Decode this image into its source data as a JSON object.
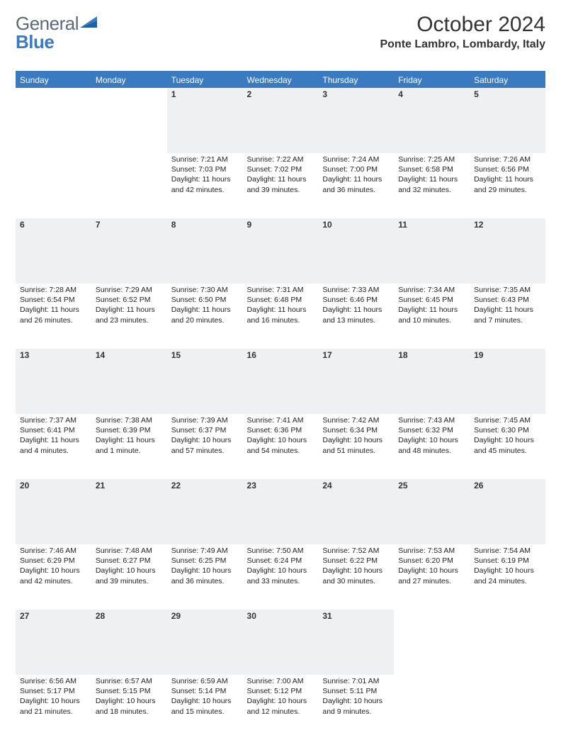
{
  "brand": {
    "part1": "General",
    "part2": "Blue"
  },
  "title": "October 2024",
  "location": "Ponte Lambro, Lombardy, Italy",
  "colors": {
    "accent": "#3a7ac0",
    "header_text": "#ffffff",
    "daynum_bg": "#eef0f2",
    "text": "#222222",
    "logo_gray": "#5a6a78"
  },
  "weekdays": [
    "Sunday",
    "Monday",
    "Tuesday",
    "Wednesday",
    "Thursday",
    "Friday",
    "Saturday"
  ],
  "weeks": [
    [
      null,
      null,
      {
        "n": "1",
        "sr": "Sunrise: 7:21 AM",
        "ss": "Sunset: 7:03 PM",
        "dl": "Daylight: 11 hours and 42 minutes."
      },
      {
        "n": "2",
        "sr": "Sunrise: 7:22 AM",
        "ss": "Sunset: 7:02 PM",
        "dl": "Daylight: 11 hours and 39 minutes."
      },
      {
        "n": "3",
        "sr": "Sunrise: 7:24 AM",
        "ss": "Sunset: 7:00 PM",
        "dl": "Daylight: 11 hours and 36 minutes."
      },
      {
        "n": "4",
        "sr": "Sunrise: 7:25 AM",
        "ss": "Sunset: 6:58 PM",
        "dl": "Daylight: 11 hours and 32 minutes."
      },
      {
        "n": "5",
        "sr": "Sunrise: 7:26 AM",
        "ss": "Sunset: 6:56 PM",
        "dl": "Daylight: 11 hours and 29 minutes."
      }
    ],
    [
      {
        "n": "6",
        "sr": "Sunrise: 7:28 AM",
        "ss": "Sunset: 6:54 PM",
        "dl": "Daylight: 11 hours and 26 minutes."
      },
      {
        "n": "7",
        "sr": "Sunrise: 7:29 AM",
        "ss": "Sunset: 6:52 PM",
        "dl": "Daylight: 11 hours and 23 minutes."
      },
      {
        "n": "8",
        "sr": "Sunrise: 7:30 AM",
        "ss": "Sunset: 6:50 PM",
        "dl": "Daylight: 11 hours and 20 minutes."
      },
      {
        "n": "9",
        "sr": "Sunrise: 7:31 AM",
        "ss": "Sunset: 6:48 PM",
        "dl": "Daylight: 11 hours and 16 minutes."
      },
      {
        "n": "10",
        "sr": "Sunrise: 7:33 AM",
        "ss": "Sunset: 6:46 PM",
        "dl": "Daylight: 11 hours and 13 minutes."
      },
      {
        "n": "11",
        "sr": "Sunrise: 7:34 AM",
        "ss": "Sunset: 6:45 PM",
        "dl": "Daylight: 11 hours and 10 minutes."
      },
      {
        "n": "12",
        "sr": "Sunrise: 7:35 AM",
        "ss": "Sunset: 6:43 PM",
        "dl": "Daylight: 11 hours and 7 minutes."
      }
    ],
    [
      {
        "n": "13",
        "sr": "Sunrise: 7:37 AM",
        "ss": "Sunset: 6:41 PM",
        "dl": "Daylight: 11 hours and 4 minutes."
      },
      {
        "n": "14",
        "sr": "Sunrise: 7:38 AM",
        "ss": "Sunset: 6:39 PM",
        "dl": "Daylight: 11 hours and 1 minute."
      },
      {
        "n": "15",
        "sr": "Sunrise: 7:39 AM",
        "ss": "Sunset: 6:37 PM",
        "dl": "Daylight: 10 hours and 57 minutes."
      },
      {
        "n": "16",
        "sr": "Sunrise: 7:41 AM",
        "ss": "Sunset: 6:36 PM",
        "dl": "Daylight: 10 hours and 54 minutes."
      },
      {
        "n": "17",
        "sr": "Sunrise: 7:42 AM",
        "ss": "Sunset: 6:34 PM",
        "dl": "Daylight: 10 hours and 51 minutes."
      },
      {
        "n": "18",
        "sr": "Sunrise: 7:43 AM",
        "ss": "Sunset: 6:32 PM",
        "dl": "Daylight: 10 hours and 48 minutes."
      },
      {
        "n": "19",
        "sr": "Sunrise: 7:45 AM",
        "ss": "Sunset: 6:30 PM",
        "dl": "Daylight: 10 hours and 45 minutes."
      }
    ],
    [
      {
        "n": "20",
        "sr": "Sunrise: 7:46 AM",
        "ss": "Sunset: 6:29 PM",
        "dl": "Daylight: 10 hours and 42 minutes."
      },
      {
        "n": "21",
        "sr": "Sunrise: 7:48 AM",
        "ss": "Sunset: 6:27 PM",
        "dl": "Daylight: 10 hours and 39 minutes."
      },
      {
        "n": "22",
        "sr": "Sunrise: 7:49 AM",
        "ss": "Sunset: 6:25 PM",
        "dl": "Daylight: 10 hours and 36 minutes."
      },
      {
        "n": "23",
        "sr": "Sunrise: 7:50 AM",
        "ss": "Sunset: 6:24 PM",
        "dl": "Daylight: 10 hours and 33 minutes."
      },
      {
        "n": "24",
        "sr": "Sunrise: 7:52 AM",
        "ss": "Sunset: 6:22 PM",
        "dl": "Daylight: 10 hours and 30 minutes."
      },
      {
        "n": "25",
        "sr": "Sunrise: 7:53 AM",
        "ss": "Sunset: 6:20 PM",
        "dl": "Daylight: 10 hours and 27 minutes."
      },
      {
        "n": "26",
        "sr": "Sunrise: 7:54 AM",
        "ss": "Sunset: 6:19 PM",
        "dl": "Daylight: 10 hours and 24 minutes."
      }
    ],
    [
      {
        "n": "27",
        "sr": "Sunrise: 6:56 AM",
        "ss": "Sunset: 5:17 PM",
        "dl": "Daylight: 10 hours and 21 minutes."
      },
      {
        "n": "28",
        "sr": "Sunrise: 6:57 AM",
        "ss": "Sunset: 5:15 PM",
        "dl": "Daylight: 10 hours and 18 minutes."
      },
      {
        "n": "29",
        "sr": "Sunrise: 6:59 AM",
        "ss": "Sunset: 5:14 PM",
        "dl": "Daylight: 10 hours and 15 minutes."
      },
      {
        "n": "30",
        "sr": "Sunrise: 7:00 AM",
        "ss": "Sunset: 5:12 PM",
        "dl": "Daylight: 10 hours and 12 minutes."
      },
      {
        "n": "31",
        "sr": "Sunrise: 7:01 AM",
        "ss": "Sunset: 5:11 PM",
        "dl": "Daylight: 10 hours and 9 minutes."
      },
      null,
      null
    ]
  ]
}
